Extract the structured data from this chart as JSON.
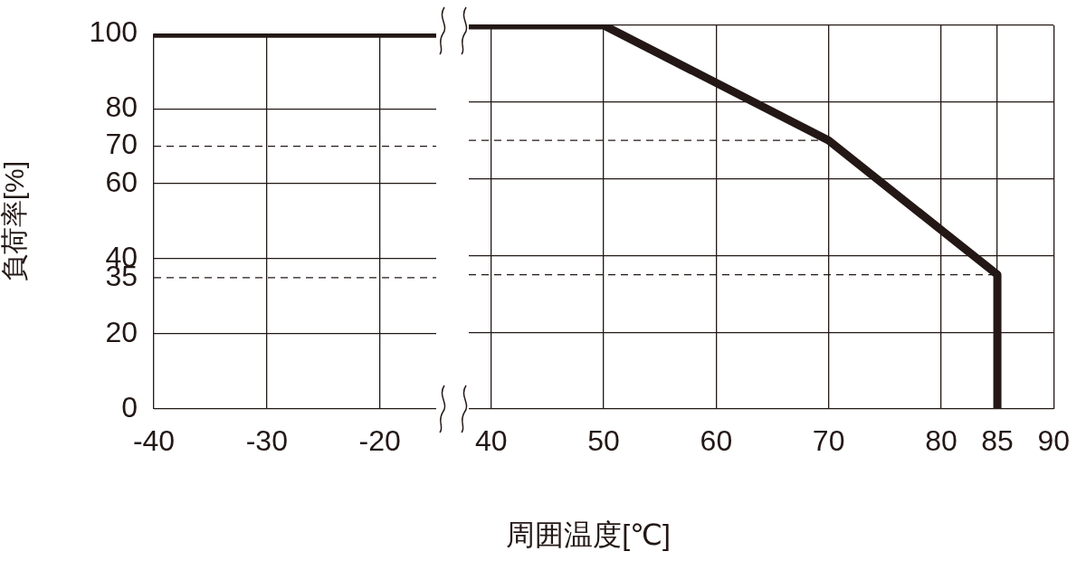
{
  "chart_data": [
    {
      "type": "line",
      "xlim": [
        -40,
        -15
      ],
      "xticks": [
        -40,
        -30,
        -20
      ],
      "ylim": [
        0,
        100
      ],
      "yticks": [
        0,
        20,
        35,
        40,
        60,
        70,
        80,
        100
      ],
      "ylabel": "負荷率[%]",
      "grid": true,
      "series": [
        {
          "color": "#231815",
          "x": [
            -40,
            -15
          ],
          "values": [
            100,
            100
          ]
        },
        {
          "color": "#231815",
          "line_style": "dashed",
          "x": [
            -40,
            -15
          ],
          "values": [
            70,
            70
          ]
        },
        {
          "color": "#231815",
          "line_style": "dashed",
          "x": [
            -40,
            -15
          ],
          "values": [
            35,
            35
          ]
        }
      ]
    },
    {
      "type": "line",
      "xlim": [
        38,
        90
      ],
      "xticks": [
        40,
        50,
        60,
        70,
        80,
        85,
        90
      ],
      "ylim": [
        0,
        100
      ],
      "yticks": [
        0,
        20,
        35,
        40,
        60,
        70,
        80,
        100
      ],
      "tick_labels": "x",
      "xlabel": "周囲温度[℃]",
      "grid": true,
      "series": [
        {
          "color": "#231815",
          "x": [
            38,
            50,
            70,
            85,
            85
          ],
          "values": [
            100,
            100,
            70,
            35,
            0
          ]
        },
        {
          "color": "#231815",
          "line_style": "dashed",
          "x": [
            38,
            70
          ],
          "values": [
            70,
            70
          ]
        },
        {
          "color": "#231815",
          "line_style": "dashed",
          "x": [
            38,
            85
          ],
          "values": [
            35,
            35
          ]
        }
      ]
    }
  ]
}
